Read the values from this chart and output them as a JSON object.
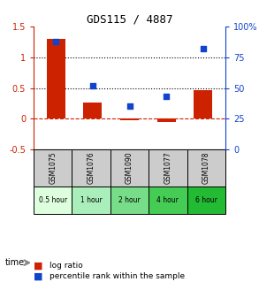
{
  "title": "GDS115 / 4887",
  "categories": [
    "GSM1075",
    "GSM1076",
    "GSM1090",
    "GSM1077",
    "GSM1078"
  ],
  "time_labels": [
    "0.5 hour",
    "1 hour",
    "2 hour",
    "4 hour",
    "6 hour"
  ],
  "log_ratio": [
    1.3,
    0.26,
    -0.02,
    -0.05,
    0.47
  ],
  "percentile": [
    88,
    52,
    35,
    43,
    82
  ],
  "bar_color": "#cc2200",
  "dot_color": "#1144cc",
  "ylim_left": [
    -0.5,
    1.5
  ],
  "ylim_right": [
    0,
    100
  ],
  "yticks_left": [
    -0.5,
    0,
    0.5,
    1.0,
    1.5
  ],
  "yticks_right": [
    0,
    25,
    50,
    75,
    100
  ],
  "ytick_labels_left": [
    "-0.5",
    "0",
    "0.5",
    "1",
    "1.5"
  ],
  "ytick_labels_right": [
    "0",
    "25",
    "50",
    "75",
    "100%"
  ],
  "dotted_lines": [
    0.5,
    1.0
  ],
  "time_colors": [
    "#ccffcc",
    "#88ee88",
    "#55dd55",
    "#22cc22",
    "#00bb00"
  ],
  "bar_width": 0.5,
  "legend_log_ratio": "log ratio",
  "legend_percentile": "percentile rank within the sample"
}
